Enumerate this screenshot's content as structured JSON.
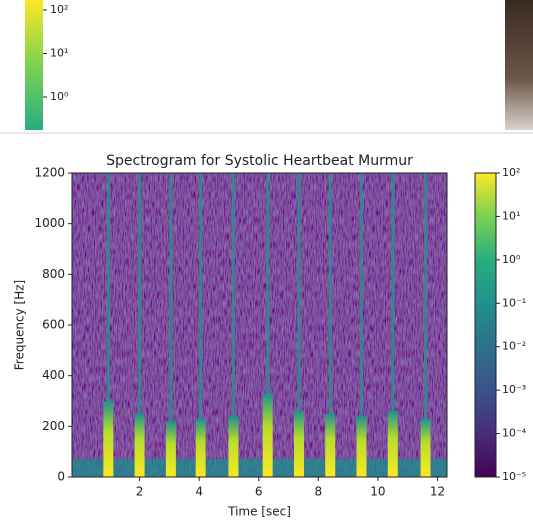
{
  "cropped_colorbar": {
    "ticks": [
      {
        "value": 100,
        "label": "10²"
      },
      {
        "value": 10,
        "label": "10¹"
      },
      {
        "value": 1,
        "label": "10⁰"
      }
    ]
  },
  "chart_data": {
    "type": "spectrogram",
    "title": "Spectrogram for Systolic Heartbeat Murmur",
    "x_label": "Time [sec]",
    "y_label": "Frequency [Hz]",
    "xlim": [
      -0.27,
      12.32
    ],
    "xticks": [
      2,
      4,
      6,
      8,
      10,
      12
    ],
    "ylim": [
      0,
      1200
    ],
    "yticks": [
      0,
      200,
      400,
      600,
      800,
      1000,
      1200
    ],
    "colormap": "viridis",
    "color_scale": "log",
    "clim": [
      1e-05,
      100
    ],
    "cticks": [
      {
        "value": 100,
        "label": "10²"
      },
      {
        "value": 10,
        "label": "10¹"
      },
      {
        "value": 1,
        "label": "10⁰"
      },
      {
        "value": 0.1,
        "label": "10⁻¹"
      },
      {
        "value": 0.01,
        "label": "10⁻²"
      },
      {
        "value": 0.001,
        "label": "10⁻³"
      },
      {
        "value": 0.0001,
        "label": "10⁻⁴"
      },
      {
        "value": 1e-05,
        "label": "10⁻⁵"
      }
    ],
    "x": [
      0.95,
      2.0,
      3.05,
      4.05,
      5.15,
      6.3,
      7.35,
      8.4,
      9.45,
      10.5,
      11.6
    ],
    "values": [
      300,
      250,
      220,
      230,
      240,
      330,
      260,
      250,
      240,
      260,
      230
    ]
  }
}
